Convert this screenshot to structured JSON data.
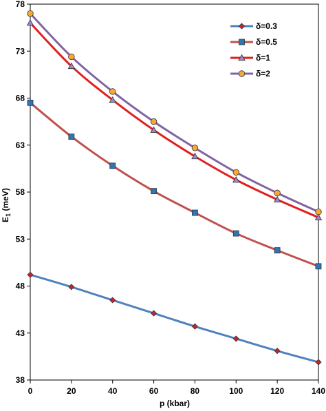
{
  "chart_data": {
    "type": "line",
    "xlabel": "p (kbar)",
    "ylabel_main": "E",
    "ylabel_sub": "1",
    "ylabel_unit": " (meV)",
    "xlim": [
      0,
      140
    ],
    "ylim": [
      38,
      78
    ],
    "x_ticks": [
      "0",
      "20",
      "40",
      "60",
      "80",
      "100",
      "120",
      "140"
    ],
    "y_ticks": [
      "38",
      "43",
      "48",
      "53",
      "58",
      "63",
      "68",
      "73",
      "78"
    ],
    "x_tick_values": [
      0,
      20,
      40,
      60,
      80,
      100,
      120,
      140
    ],
    "y_tick_values": [
      38,
      43,
      48,
      53,
      58,
      63,
      68,
      73,
      78
    ],
    "grid": false,
    "legend_position": "top-right",
    "x": [
      0,
      20,
      40,
      60,
      80,
      100,
      120,
      140
    ],
    "series": [
      {
        "name": "δ=0.3",
        "values": [
          49.2,
          47.9,
          46.5,
          45.1,
          43.7,
          42.4,
          41.1,
          39.9
        ],
        "line_color": "#4F81BD",
        "marker": "diamond",
        "marker_color": "#C0262D"
      },
      {
        "name": "δ=0.5",
        "values": [
          67.5,
          63.9,
          60.8,
          58.1,
          55.8,
          53.6,
          51.8,
          50.1
        ],
        "line_color": "#C0504D",
        "marker": "square",
        "marker_color": "#2E75B6"
      },
      {
        "name": "δ=1",
        "values": [
          76.0,
          71.4,
          67.8,
          64.6,
          61.8,
          59.3,
          57.2,
          55.3
        ],
        "line_color": "#E02020",
        "marker": "triangle",
        "marker_color": "#9E86C8"
      },
      {
        "name": "δ=2",
        "values": [
          77.0,
          72.4,
          68.7,
          65.5,
          62.7,
          60.1,
          57.9,
          55.9
        ],
        "line_color": "#8064A2",
        "marker": "circle",
        "marker_color": "#F8A832"
      }
    ]
  }
}
